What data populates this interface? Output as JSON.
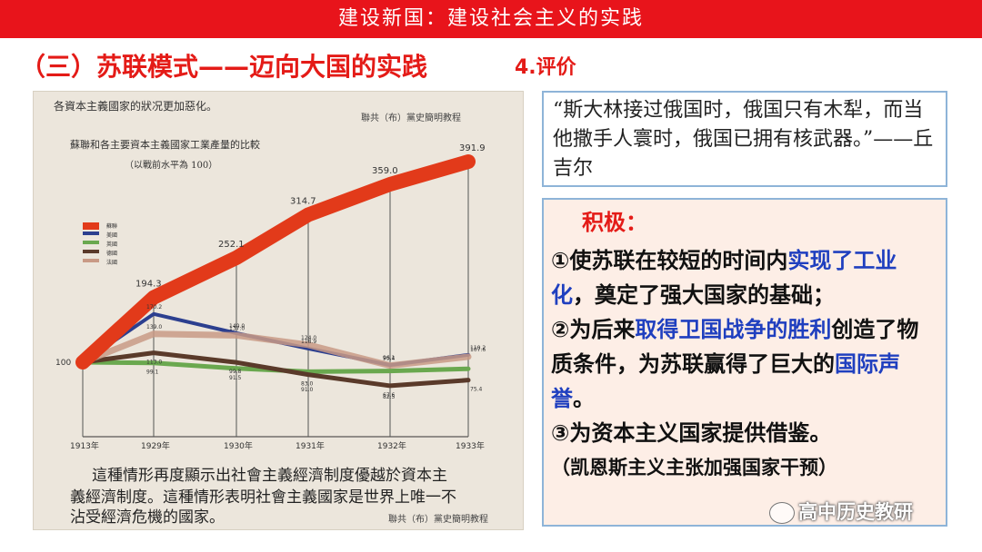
{
  "banner": "建设新国：建设社会主义的实践",
  "heading": "（三）苏联模式——迈向大国的实践",
  "eval_label": "4.评价",
  "scan": {
    "top_note": "各資本主義國家的狀况更加惡化。",
    "source_top": "聯共（布）黨史簡明教程",
    "chart_title": "蘇聯和各主要資本主義國家工業產量的比較",
    "chart_subtitle": "（以戰前水平為 100）",
    "bottom_text_1": "這種情形再度顯示出社會主義經濟制度優越於資本主",
    "bottom_text_2": "義經濟制度。這種情形表明社會主義國家是世界上唯一不",
    "bottom_text_3": "沾受經濟危機的國家。",
    "source_bottom": "聯共（布）黨史簡明教程"
  },
  "chart_data": {
    "type": "line",
    "title": "蘇聯和各主要資本主義國家工業產量的比較",
    "subtitle": "（以戰前水平為 100）",
    "x": [
      "1913年",
      "1929年",
      "1930年",
      "1931年",
      "1932年",
      "1933年"
    ],
    "start_label": "100",
    "ylim": [
      50,
      400
    ],
    "legend_position": "left",
    "series": [
      {
        "name": "蘇聯",
        "color": "#e23a1a",
        "width": 16,
        "values": [
          100,
          194.3,
          252.1,
          314.7,
          359.0,
          391.9
        ],
        "labels": [
          "",
          "194.3",
          "252.1",
          "314.7",
          "359.0",
          "391.9"
        ]
      },
      {
        "name": "美國",
        "color": "#2c3f8f",
        "width": 4,
        "values": [
          100,
          170.2,
          140.0,
          118.9,
          96.1,
          110.2
        ],
        "labels": [
          "",
          "170.2",
          "140.0",
          "118.9",
          "96.1",
          "110.2"
        ]
      },
      {
        "name": "英國",
        "color": "#6aa84f",
        "width": 5,
        "values": [
          100,
          99.1,
          91.5,
          87.0,
          88.0,
          91.0
        ],
        "labels": [
          "",
          "99.1",
          "91.5",
          "",
          "",
          ""
        ]
      },
      {
        "name": "德國",
        "color": "#5a3a2a",
        "width": 5,
        "values": [
          100,
          113.0,
          99.8,
          83.0,
          67.6,
          75.4
        ],
        "labels": [
          "",
          "113.0",
          "99.8",
          "83.0",
          "67.6",
          "75.4"
        ]
      },
      {
        "name": "法國",
        "color": "#c99a86",
        "width": 7,
        "values": [
          100,
          139.0,
          137.0,
          124.0,
          95.4,
          107.6
        ],
        "labels": [
          "",
          "139.0",
          "137.0",
          "124.0",
          "95.4",
          "107.6"
        ]
      }
    ],
    "extra_labels": [
      "91.0",
      "82.5"
    ]
  },
  "quote": "“斯大林接过俄国时，俄国只有木犁，而当他撒手人寰时，俄国已拥有核武器。”——丘吉尔",
  "positive": {
    "title": "积极：",
    "p1_a": "①使苏联在较短的时间内",
    "p1_b": "实现了工业化",
    "p1_c": "，奠定了强大国家的基础；",
    "p2_a": "②为后来",
    "p2_b": "取得卫国战争的胜利",
    "p2_c": "创造了物质条件，为苏联赢得了巨大的",
    "p2_d": "国际声誉",
    "p2_e": "。",
    "p3": "③为资本主义国家提供借鉴。",
    "p4": "（凯恩斯主义主张加强国家干预）"
  },
  "watermark": "高中历史教研"
}
